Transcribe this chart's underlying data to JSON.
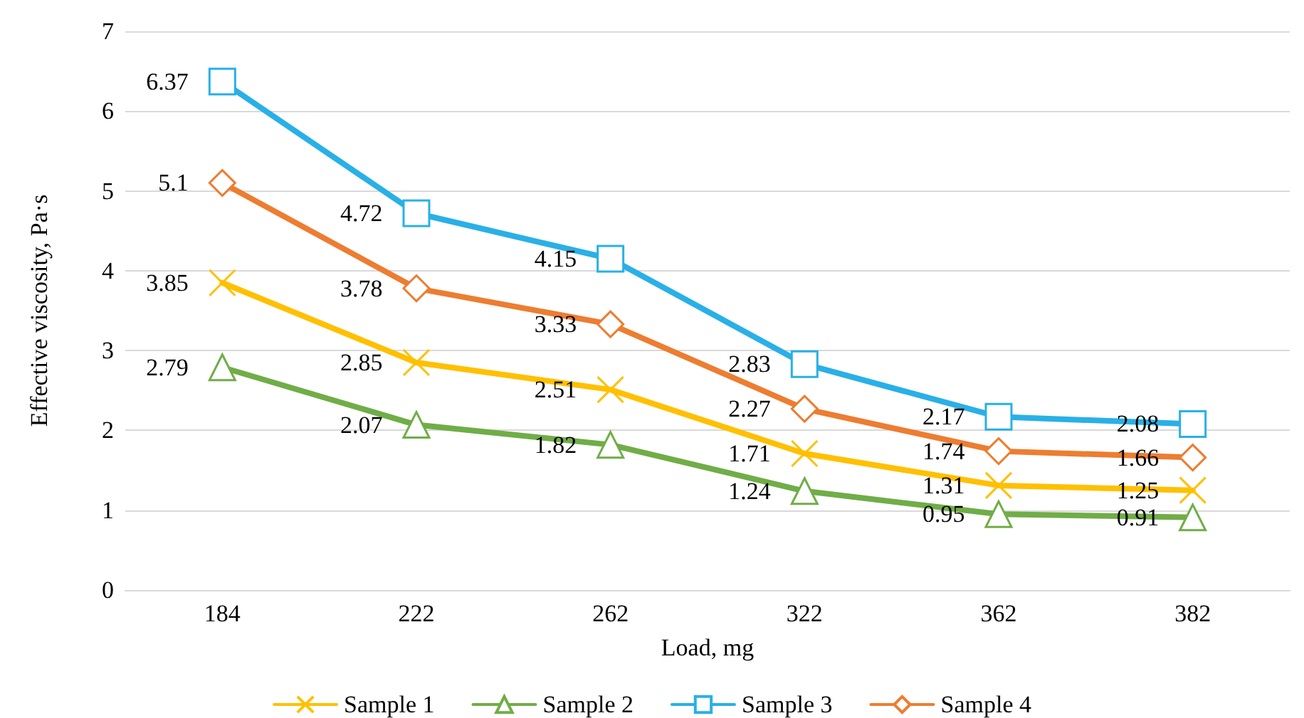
{
  "chart_data": {
    "type": "line",
    "xlabel": "Load, mg",
    "ylabel": "Effective viscosity, Pa·s",
    "categories": [
      "184",
      "222",
      "262",
      "322",
      "362",
      "382"
    ],
    "series": [
      {
        "name": "Sample 1",
        "color": "#ffc000",
        "marker": "cross",
        "values": [
          3.85,
          2.85,
          2.51,
          1.71,
          1.31,
          1.25
        ]
      },
      {
        "name": "Sample 2",
        "color": "#70ad47",
        "marker": "triangle",
        "values": [
          2.79,
          2.07,
          1.82,
          1.24,
          0.95,
          0.91
        ]
      },
      {
        "name": "Sample 3",
        "color": "#29b0e6",
        "marker": "square",
        "values": [
          6.37,
          4.72,
          4.15,
          2.83,
          2.17,
          2.08
        ]
      },
      {
        "name": "Sample 4",
        "color": "#ed7d31",
        "marker": "diamond",
        "values": [
          5.1,
          3.78,
          3.33,
          2.27,
          1.74,
          1.66
        ]
      }
    ],
    "ylim": [
      0,
      7
    ],
    "yticks": [
      0,
      1,
      2,
      3,
      4,
      5,
      6,
      7
    ],
    "grid": "y",
    "legend": "bottom",
    "data_labels": true,
    "line_style": "solid"
  }
}
